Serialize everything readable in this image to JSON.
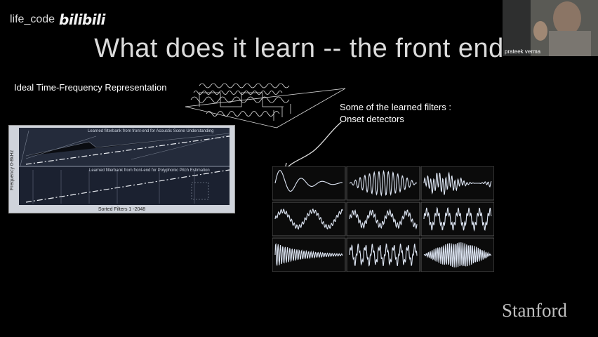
{
  "watermark": {
    "text": "life_code",
    "logo": "bilibili"
  },
  "title": "What does it learn -- the front end",
  "ideal_label": "Ideal Time-Frequency Representation",
  "filters_caption": {
    "line1": "Some of the learned filters :",
    "line2": "Onset detectors"
  },
  "webcam": {
    "name": "prateek verma"
  },
  "filterbank": {
    "caption_top": "Learned filterbank from front-end for Acoustic Scene Understanding",
    "caption_bottom": "Learned filterbank from front-end for Polyphonic Pitch Estimation",
    "ylabel": "Frequency 0-8kHz",
    "xlabel": "Sorted Filters 1 -2048"
  },
  "footer": {
    "logo": "Stanford"
  },
  "colors": {
    "background": "#000000",
    "title": "#dcdcdc",
    "wave": "#dfe7f5"
  }
}
